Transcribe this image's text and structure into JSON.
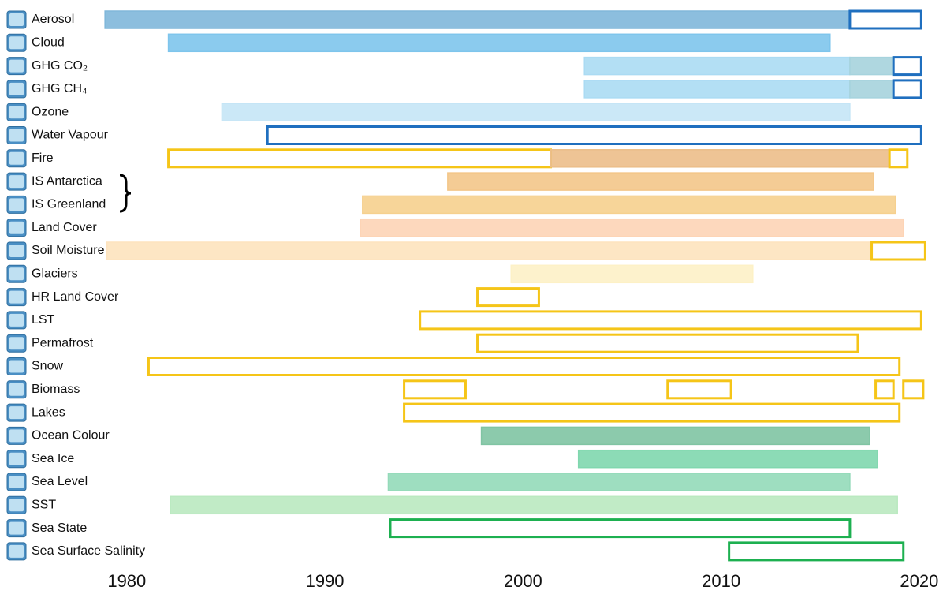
{
  "chart_data": {
    "type": "timeline",
    "xlim": [
      1973.6,
      2021.2
    ],
    "xticks": [
      1980,
      1990,
      2000,
      2010,
      2020
    ],
    "rows": [
      {
        "name": "Aerosol",
        "bars": [
          {
            "start": 1978.9,
            "end": 2016.5,
            "style": "fill",
            "color": "#80b7da"
          },
          {
            "start": 2016.5,
            "end": 2020.1,
            "style": "outline",
            "color": "#1f6fbf"
          }
        ]
      },
      {
        "name": "Cloud",
        "bars": [
          {
            "start": 1982.1,
            "end": 2015.5,
            "style": "fill",
            "color": "#7ec5ec"
          }
        ]
      },
      {
        "name": "GHG CO₂",
        "bars": [
          {
            "start": 2003.1,
            "end": 2016.5,
            "style": "fill",
            "color": "#abdbf3"
          },
          {
            "start": 2016.5,
            "end": 2018.7,
            "style": "fill",
            "color": "#a6d3dd"
          },
          {
            "start": 2018.7,
            "end": 2020.1,
            "style": "outline",
            "color": "#1f6fbf"
          }
        ]
      },
      {
        "name": "GHG CH₄",
        "bars": [
          {
            "start": 2003.1,
            "end": 2016.5,
            "style": "fill",
            "color": "#abdbf3"
          },
          {
            "start": 2016.5,
            "end": 2018.7,
            "style": "fill",
            "color": "#a6d3dd"
          },
          {
            "start": 2018.7,
            "end": 2020.1,
            "style": "outline",
            "color": "#1f6fbf"
          }
        ]
      },
      {
        "name": "Ozone",
        "bars": [
          {
            "start": 1984.8,
            "end": 2016.5,
            "style": "fill",
            "color": "#c5e5f6"
          }
        ]
      },
      {
        "name": "Water Vapour",
        "bars": [
          {
            "start": 1987.1,
            "end": 2020.1,
            "style": "outline",
            "color": "#1f6fbf"
          }
        ]
      },
      {
        "name": "Fire",
        "bars": [
          {
            "start": 1982.1,
            "end": 2001.4,
            "style": "outline",
            "color": "#f5c518"
          },
          {
            "start": 2001.4,
            "end": 2018.5,
            "style": "fill",
            "color": "#ecbe89"
          },
          {
            "start": 2018.5,
            "end": 2019.4,
            "style": "outline",
            "color": "#f5c518"
          }
        ]
      },
      {
        "name": "IS Antarctica",
        "bars": [
          {
            "start": 1996.2,
            "end": 2017.7,
            "style": "fill",
            "color": "#f3c689"
          }
        ]
      },
      {
        "name": "IS Greenland",
        "bars": [
          {
            "start": 1991.9,
            "end": 2018.8,
            "style": "fill",
            "color": "#f6d08e"
          }
        ]
      },
      {
        "name": "Land Cover",
        "bars": [
          {
            "start": 1991.8,
            "end": 2019.2,
            "style": "fill",
            "color": "#fdd4b6"
          }
        ]
      },
      {
        "name": "Soil Moisture",
        "bars": [
          {
            "start": 1979.0,
            "end": 2017.6,
            "style": "fill",
            "color": "#fde3be"
          },
          {
            "start": 2017.6,
            "end": 2020.3,
            "style": "outline",
            "color": "#f5c518"
          }
        ]
      },
      {
        "name": "Glaciers",
        "bars": [
          {
            "start": 1999.4,
            "end": 2011.6,
            "style": "fill",
            "color": "#fdf1c6"
          }
        ]
      },
      {
        "name": "HR Land Cover",
        "bars": [
          {
            "start": 1997.7,
            "end": 2000.8,
            "style": "outline",
            "color": "#f5c518"
          }
        ]
      },
      {
        "name": "LST",
        "bars": [
          {
            "start": 1994.8,
            "end": 2020.1,
            "style": "outline",
            "color": "#f5c518"
          }
        ]
      },
      {
        "name": "Permafrost",
        "bars": [
          {
            "start": 1997.7,
            "end": 2016.9,
            "style": "outline",
            "color": "#f5c518"
          }
        ]
      },
      {
        "name": "Snow",
        "bars": [
          {
            "start": 1981.1,
            "end": 2019.0,
            "style": "outline",
            "color": "#f5c518"
          }
        ]
      },
      {
        "name": "Biomass",
        "bars": [
          {
            "start": 1994.0,
            "end": 1997.1,
            "style": "outline",
            "color": "#f5c518"
          },
          {
            "start": 2007.3,
            "end": 2010.5,
            "style": "outline",
            "color": "#f5c518"
          },
          {
            "start": 2017.8,
            "end": 2018.7,
            "style": "outline",
            "color": "#f5c518"
          },
          {
            "start": 2019.2,
            "end": 2020.2,
            "style": "outline",
            "color": "#f5c518"
          }
        ]
      },
      {
        "name": "Lakes",
        "bars": [
          {
            "start": 1994.0,
            "end": 2019.0,
            "style": "outline",
            "color": "#f5c518"
          }
        ]
      },
      {
        "name": "Ocean Colour",
        "bars": [
          {
            "start": 1997.9,
            "end": 2017.5,
            "style": "fill",
            "color": "#80c4a3"
          }
        ]
      },
      {
        "name": "Sea Ice",
        "bars": [
          {
            "start": 2002.8,
            "end": 2017.9,
            "style": "fill",
            "color": "#80d7ae"
          }
        ]
      },
      {
        "name": "Sea Level",
        "bars": [
          {
            "start": 1993.2,
            "end": 2016.5,
            "style": "fill",
            "color": "#94dab9"
          }
        ]
      },
      {
        "name": "SST",
        "bars": [
          {
            "start": 1982.2,
            "end": 2018.9,
            "style": "fill",
            "color": "#bae9c0"
          }
        ]
      },
      {
        "name": "Sea State",
        "bars": [
          {
            "start": 1993.3,
            "end": 2016.5,
            "style": "outline",
            "color": "#1db050"
          }
        ]
      },
      {
        "name": "Sea Surface Salinity",
        "bars": [
          {
            "start": 2010.4,
            "end": 2019.2,
            "style": "outline",
            "color": "#1db050"
          }
        ]
      }
    ]
  }
}
